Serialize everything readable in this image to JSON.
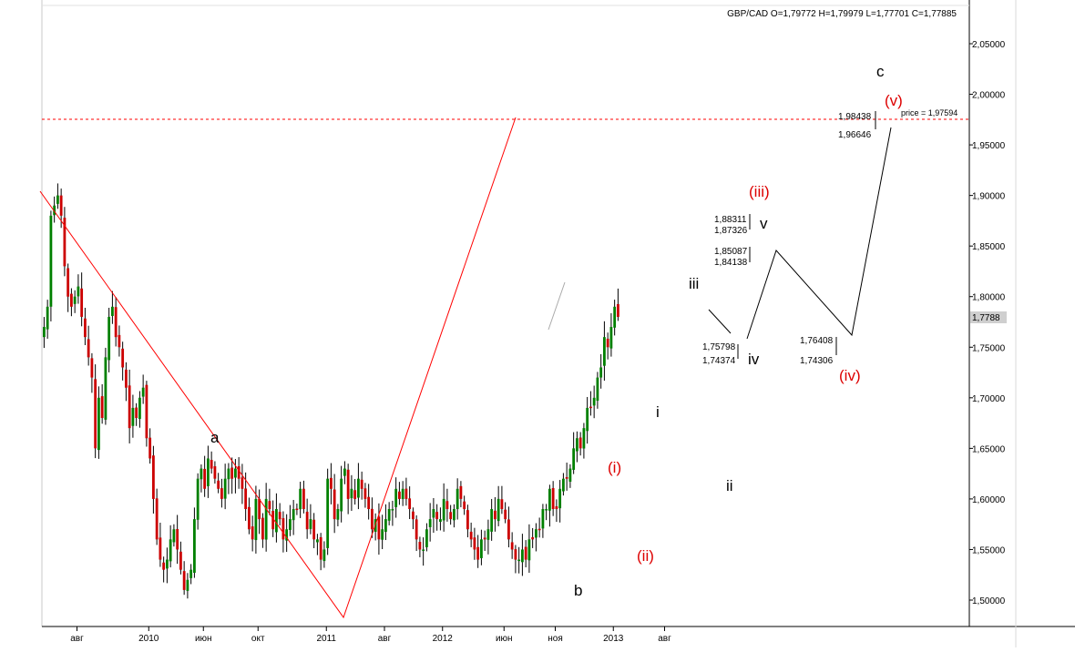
{
  "header": {
    "ohlc": "GBP/CAD O=1,79772 H=1,79979 L=1,77701 C=1,77885"
  },
  "last_price_label": "1,7788",
  "target_label": "price = 1,97594",
  "colors": {
    "bull": "#008000",
    "bear": "#cc0000",
    "wick": "#000000",
    "trend": "#ff0000",
    "wave_red": "#dd0000",
    "wave_black": "#000000"
  },
  "chart_data": {
    "type": "candlestick",
    "ylim": [
      1.475,
      2.085
    ],
    "y_ticks": [
      "1,50000",
      "1,55000",
      "1,60000",
      "1,65000",
      "1,70000",
      "1,75000",
      "1,80000",
      "1,85000",
      "1,90000",
      "1,95000",
      "2,00000",
      "2,05000"
    ],
    "y_tick_values": [
      1.5,
      1.55,
      1.6,
      1.65,
      1.7,
      1.75,
      1.8,
      1.85,
      1.9,
      1.95,
      2.0,
      2.05
    ],
    "x_ticks": [
      {
        "label": "авг",
        "bar": 10
      },
      {
        "label": "2010",
        "bar": 31
      },
      {
        "label": "июн",
        "bar": 47
      },
      {
        "label": "окт",
        "bar": 63
      },
      {
        "label": "2011",
        "bar": 83
      },
      {
        "label": "авг",
        "bar": 100
      },
      {
        "label": "2012",
        "bar": 117
      },
      {
        "label": "июн",
        "bar": 135
      },
      {
        "label": "ноя",
        "bar": 150
      },
      {
        "label": "2013",
        "bar": 167
      },
      {
        "label": "авг",
        "bar": 182
      }
    ],
    "candles_close": [
      1.77,
      1.79,
      1.88,
      1.89,
      1.9,
      1.88,
      1.83,
      1.8,
      1.79,
      1.8,
      1.81,
      1.78,
      1.76,
      1.74,
      1.72,
      1.65,
      1.7,
      1.68,
      1.74,
      1.78,
      1.79,
      1.76,
      1.75,
      1.73,
      1.71,
      1.67,
      1.69,
      1.68,
      1.7,
      1.71,
      1.66,
      1.64,
      1.6,
      1.56,
      1.54,
      1.53,
      1.54,
      1.56,
      1.57,
      1.55,
      1.53,
      1.51,
      1.52,
      1.53,
      1.58,
      1.62,
      1.63,
      1.61,
      1.64,
      1.63,
      1.62,
      1.61,
      1.6,
      1.62,
      1.63,
      1.62,
      1.63,
      1.62,
      1.61,
      1.59,
      1.57,
      1.56,
      1.6,
      1.58,
      1.56,
      1.6,
      1.59,
      1.57,
      1.59,
      1.58,
      1.56,
      1.57,
      1.58,
      1.59,
      1.59,
      1.61,
      1.59,
      1.57,
      1.58,
      1.56,
      1.56,
      1.54,
      1.55,
      1.62,
      1.61,
      1.58,
      1.59,
      1.62,
      1.63,
      1.6,
      1.61,
      1.6,
      1.62,
      1.61,
      1.6,
      1.59,
      1.57,
      1.58,
      1.56,
      1.57,
      1.58,
      1.59,
      1.59,
      1.61,
      1.6,
      1.61,
      1.6,
      1.59,
      1.58,
      1.56,
      1.55,
      1.55,
      1.57,
      1.58,
      1.59,
      1.58,
      1.58,
      1.6,
      1.59,
      1.58,
      1.59,
      1.61,
      1.6,
      1.59,
      1.57,
      1.56,
      1.55,
      1.54,
      1.56,
      1.56,
      1.57,
      1.59,
      1.58,
      1.6,
      1.59,
      1.58,
      1.56,
      1.55,
      1.54,
      1.54,
      1.55,
      1.54,
      1.56,
      1.56,
      1.57,
      1.57,
      1.59,
      1.59,
      1.61,
      1.59,
      1.59,
      1.61,
      1.62,
      1.62,
      1.63,
      1.65,
      1.66,
      1.65,
      1.67,
      1.69,
      1.69,
      1.7,
      1.72,
      1.73,
      1.76,
      1.75,
      1.77,
      1.79,
      1.78
    ]
  },
  "waves": {
    "a": "a",
    "b": "b",
    "c": "c",
    "i": "i",
    "ii": "ii",
    "iii": "iii",
    "iv": "iv",
    "v": "v",
    "r_i": "(i)",
    "r_ii": "(ii)",
    "r_iii": "(iii)",
    "r_iv": "(iv)",
    "r_v": "(v)"
  },
  "levels": {
    "l1": "1,75798",
    "l2": "1,74374",
    "l3": "1,85087",
    "l4": "1,84138",
    "l5": "1,88311",
    "l6": "1,87326",
    "l7": "1,76408",
    "l8": "1,74306",
    "l9": "1,98438",
    "l10": "1,96646"
  }
}
